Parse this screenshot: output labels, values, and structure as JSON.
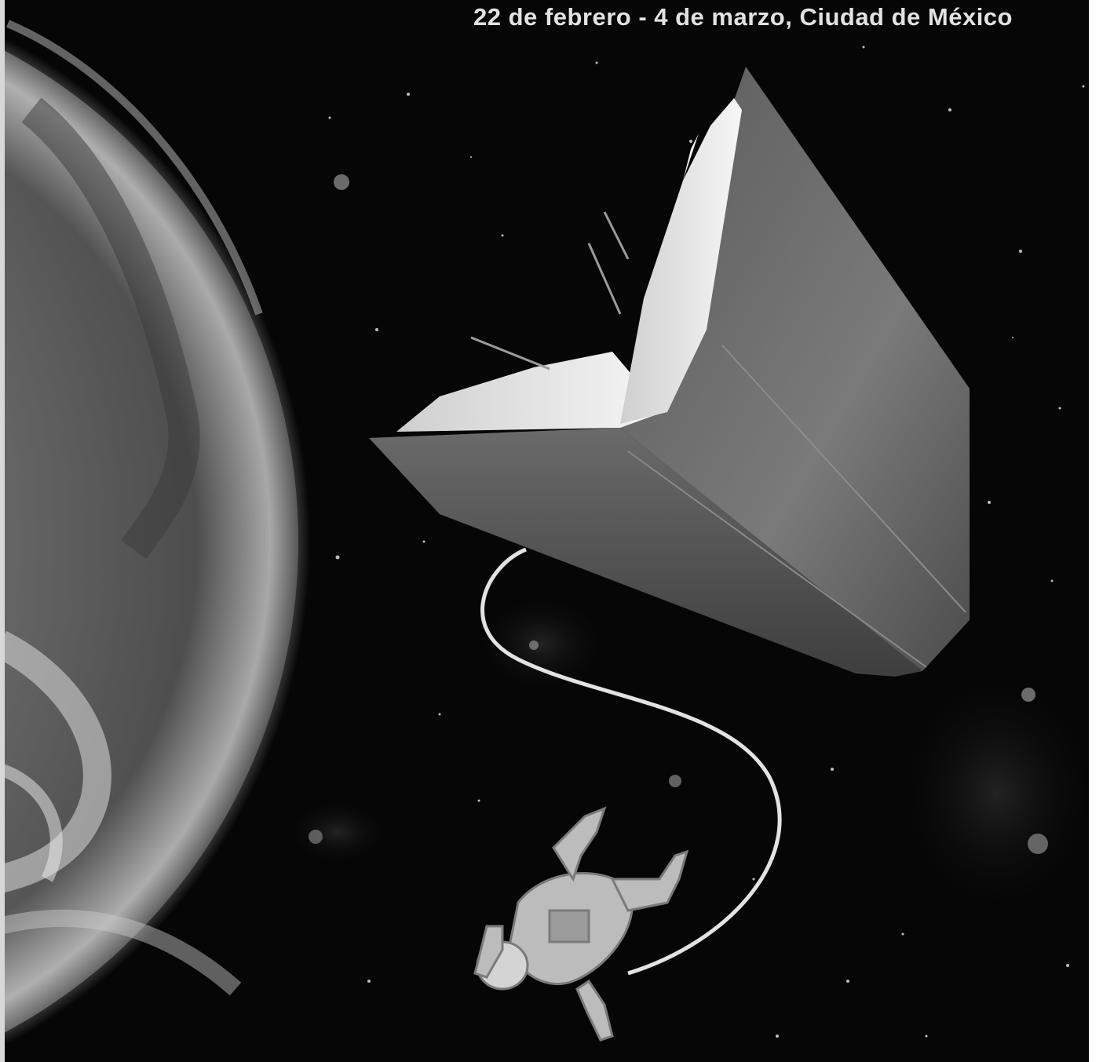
{
  "poster": {
    "caption": "22 de febrero - 4 de marzo, Ciudad de México"
  },
  "scene": {
    "objects": [
      "planet",
      "floating-book",
      "astronaut",
      "tether",
      "stars"
    ],
    "palette": {
      "space": "#060606",
      "planet-light": "#d0d0d0",
      "book-cover": "#6e6e6e",
      "pages": "#eeeeee"
    }
  }
}
